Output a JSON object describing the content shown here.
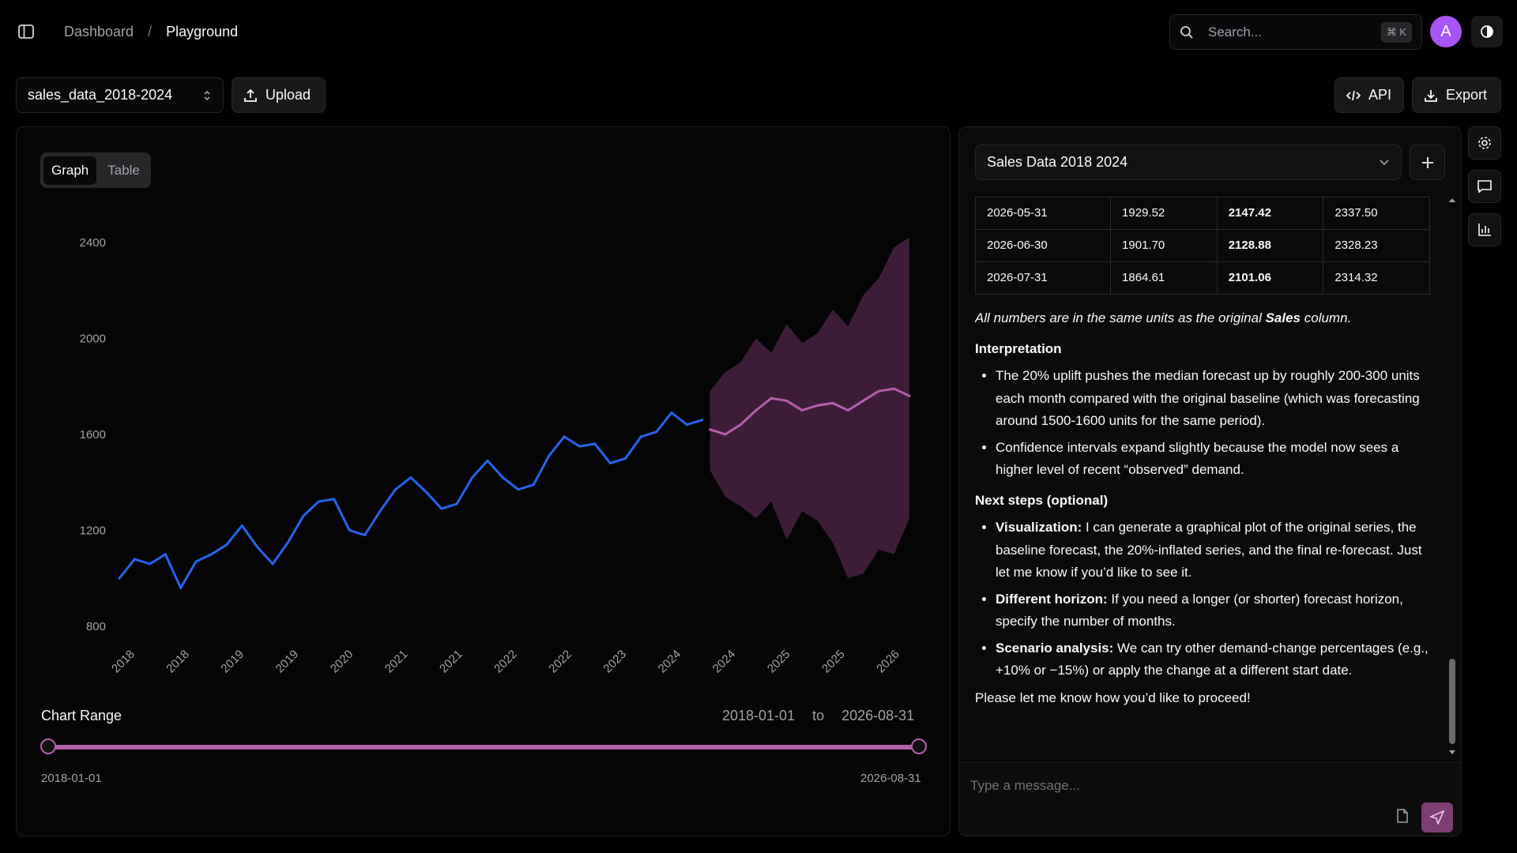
{
  "breadcrumb": {
    "parent": "Dashboard",
    "separator": "/",
    "current": "Playground"
  },
  "search": {
    "placeholder": "Search...",
    "shortcut": "⌘ K"
  },
  "user": {
    "avatar_initial": "A"
  },
  "toolbar": {
    "dataset": "sales_data_2018-2024",
    "upload": "Upload",
    "api": "API",
    "export": "Export"
  },
  "view_toggle": {
    "graph": "Graph",
    "table": "Table",
    "active": "Graph"
  },
  "chart_data": {
    "type": "line",
    "title": "",
    "ylim": [
      800,
      2600
    ],
    "y_ticks": [
      "2400",
      "2000",
      "1600",
      "1200",
      "800"
    ],
    "x_tick_labels": [
      "2018",
      "2018",
      "2019",
      "2019",
      "2020",
      "2021",
      "2021",
      "2022",
      "2022",
      "2023",
      "2024",
      "2024",
      "2025",
      "2025",
      "2026"
    ],
    "series": [
      {
        "color": "#2563eb",
        "x": [
          "2018-01",
          "2018-03",
          "2018-05",
          "2018-07",
          "2018-09",
          "2018-11",
          "2019-01",
          "2019-03",
          "2019-05",
          "2019-07",
          "2019-09",
          "2019-11",
          "2020-01",
          "2020-03",
          "2020-05",
          "2020-07",
          "2020-09",
          "2020-11",
          "2021-01",
          "2021-03",
          "2021-05",
          "2021-07",
          "2021-09",
          "2021-11",
          "2022-01",
          "2022-03",
          "2022-05",
          "2022-07",
          "2022-09",
          "2022-11",
          "2023-01",
          "2023-03",
          "2023-05",
          "2023-07",
          "2023-09",
          "2023-11",
          "2024-01",
          "2024-03",
          "2024-05"
        ],
        "y": [
          1000,
          1080,
          1060,
          1100,
          960,
          1070,
          1100,
          1140,
          1220,
          1130,
          1060,
          1150,
          1260,
          1320,
          1330,
          1200,
          1180,
          1280,
          1370,
          1420,
          1360,
          1290,
          1310,
          1420,
          1490,
          1420,
          1370,
          1390,
          1510,
          1590,
          1550,
          1560,
          1480,
          1500,
          1590,
          1610,
          1690,
          1640,
          1660
        ]
      },
      {
        "color": "#b35fa9",
        "x": [
          "2024-06",
          "2024-08",
          "2024-10",
          "2024-12",
          "2025-02",
          "2025-04",
          "2025-06",
          "2025-08",
          "2025-10",
          "2025-12",
          "2026-02",
          "2026-04",
          "2026-06",
          "2026-08"
        ],
        "y": [
          1620,
          1600,
          1640,
          1700,
          1750,
          1740,
          1700,
          1720,
          1730,
          1700,
          1740,
          1780,
          1790,
          1760
        ],
        "upper": [
          1780,
          1860,
          1900,
          2000,
          1940,
          2060,
          1980,
          2020,
          2120,
          2050,
          2180,
          2250,
          2380,
          2420
        ],
        "lower": [
          1450,
          1340,
          1300,
          1250,
          1320,
          1160,
          1280,
          1240,
          1150,
          1000,
          1020,
          1120,
          1100,
          1250
        ]
      }
    ]
  },
  "chart_range": {
    "label": "Chart Range",
    "start": "2018-01-01",
    "to": "to",
    "end": "2026-08-31",
    "min": "2018-01-01",
    "max": "2026-08-31"
  },
  "chat": {
    "title": "Sales Data 2018 2024",
    "table_rows": [
      [
        "2026-05-31",
        "1929.52",
        "2147.42",
        "2337.50"
      ],
      [
        "2026-06-30",
        "1901.70",
        "2128.88",
        "2328.23"
      ],
      [
        "2026-07-31",
        "1864.61",
        "2101.06",
        "2314.32"
      ]
    ],
    "note_prefix": "All numbers are in the same units as the original ",
    "note_bold": "Sales",
    "note_suffix": " column.",
    "interpretation_heading": "Interpretation",
    "interpretation": [
      "The 20% uplift pushes the median forecast up by roughly 200-300 units each month compared with the original baseline (which was forecasting around 1500-1600 units for the same period).",
      "Confidence intervals expand slightly because the model now sees a higher level of recent “observed” demand."
    ],
    "next_steps_heading": "Next steps (optional)",
    "next_steps": [
      {
        "label": "Visualization:",
        "text": " I can generate a graphical plot of the original series, the baseline forecast, the 20%-inflated series, and the final re-forecast. Just let me know if you’d like to see it."
      },
      {
        "label": "Different horizon:",
        "text": " If you need a longer (or shorter) forecast horizon, specify the number of months."
      },
      {
        "label": "Scenario analysis:",
        "text": " We can try other demand-change percentages (e.g., +10% or −15%) or apply the change at a different start date."
      }
    ],
    "closing": "Please let me know how you’d like to proceed!",
    "input_placeholder": "Type a message..."
  }
}
